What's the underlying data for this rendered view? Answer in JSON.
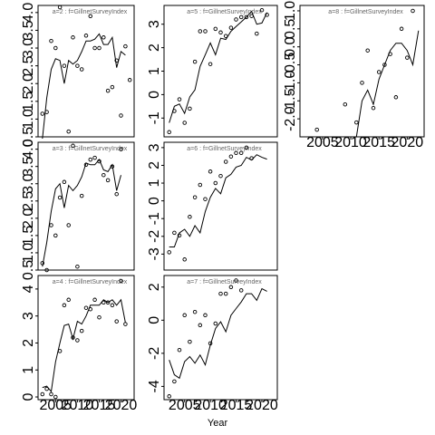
{
  "chart_data": {
    "type": "scatter",
    "layout": "3x3 panel grid (column-major)",
    "xlabel": "Year",
    "x_ticks": [
      2005,
      2010,
      2015,
      2020
    ],
    "xlim": [
      2001,
      2023
    ],
    "panels": [
      {
        "label": "a=2 : f=GillnetSurveyIndex",
        "ylim": [
          0.5,
          4.2
        ],
        "yticks": [
          0.5,
          1.0,
          1.5,
          2.0,
          2.5,
          3.0,
          3.5,
          4.0
        ],
        "ytick_labels": [
          "0.5",
          "1.0",
          "1.5",
          "2.0",
          "2.5",
          "3.0",
          "3.5",
          "4.0"
        ],
        "observed": [
          [
            2002,
            1.15
          ],
          [
            2003,
            1.2
          ],
          [
            2004,
            3.2
          ],
          [
            2005,
            3.0
          ],
          [
            2006,
            4.15
          ],
          [
            2007,
            2.5
          ],
          [
            2008,
            0.65
          ],
          [
            2009,
            3.3
          ],
          [
            2010,
            2.5
          ],
          [
            2011,
            2.4
          ],
          [
            2012,
            3.35
          ],
          [
            2013,
            3.9
          ],
          [
            2014,
            3.0
          ],
          [
            2015,
            3.0
          ],
          [
            2016,
            3.3
          ],
          [
            2017,
            1.8
          ],
          [
            2018,
            1.9
          ],
          [
            2019,
            2.65
          ],
          [
            2020,
            1.1
          ],
          [
            2021,
            3.05
          ],
          [
            2022,
            2.1
          ]
        ],
        "fitted": [
          [
            2002,
            0.45
          ],
          [
            2003,
            1.6
          ],
          [
            2004,
            2.4
          ],
          [
            2005,
            2.7
          ],
          [
            2006,
            2.65
          ],
          [
            2007,
            2.0
          ],
          [
            2008,
            2.65
          ],
          [
            2009,
            2.55
          ],
          [
            2010,
            2.65
          ],
          [
            2011,
            2.9
          ],
          [
            2012,
            3.2
          ],
          [
            2013,
            3.2
          ],
          [
            2014,
            3.25
          ],
          [
            2015,
            3.4
          ],
          [
            2016,
            3.1
          ],
          [
            2017,
            3.1
          ],
          [
            2018,
            3.3
          ],
          [
            2019,
            2.45
          ],
          [
            2020,
            2.9
          ],
          [
            2021,
            2.8
          ]
        ]
      },
      {
        "label": "a=3 : f=GillnetSurveyIndex",
        "ylim": [
          0.5,
          4.2
        ],
        "yticks": [
          0.5,
          1.0,
          1.5,
          2.0,
          2.5,
          3.0,
          3.5,
          4.0
        ],
        "ytick_labels": [
          "0.5",
          "1.0",
          "1.5",
          "2.0",
          "2.5",
          "3.0",
          "3.5",
          "4.0"
        ],
        "observed": [
          [
            2002,
            0.7
          ],
          [
            2003,
            0.5
          ],
          [
            2004,
            1.8
          ],
          [
            2005,
            1.5
          ],
          [
            2006,
            2.6
          ],
          [
            2007,
            3.05
          ],
          [
            2008,
            1.8
          ],
          [
            2009,
            4.1
          ],
          [
            2010,
            0.6
          ],
          [
            2011,
            2.65
          ],
          [
            2012,
            3.55
          ],
          [
            2013,
            3.7
          ],
          [
            2014,
            3.75
          ],
          [
            2015,
            3.65
          ],
          [
            2016,
            3.25
          ],
          [
            2017,
            3.1
          ],
          [
            2018,
            3.5
          ],
          [
            2019,
            2.7
          ],
          [
            2020,
            4.0
          ]
        ],
        "fitted": [
          [
            2002,
            0.6
          ],
          [
            2003,
            1.3
          ],
          [
            2004,
            2.2
          ],
          [
            2005,
            2.85
          ],
          [
            2006,
            3.0
          ],
          [
            2007,
            2.3
          ],
          [
            2008,
            2.95
          ],
          [
            2009,
            2.8
          ],
          [
            2010,
            2.95
          ],
          [
            2011,
            3.2
          ],
          [
            2012,
            3.6
          ],
          [
            2013,
            3.55
          ],
          [
            2014,
            3.55
          ],
          [
            2015,
            3.7
          ],
          [
            2016,
            3.4
          ],
          [
            2017,
            3.35
          ],
          [
            2018,
            3.55
          ],
          [
            2019,
            2.8
          ],
          [
            2020,
            3.25
          ]
        ]
      },
      {
        "label": "a=4 : f=GillnetSurveyIndex",
        "ylim": [
          -0.1,
          4.5
        ],
        "yticks": [
          0,
          1,
          2,
          3,
          4
        ],
        "ytick_labels": [
          "0",
          "1",
          "2",
          "3",
          "4"
        ],
        "observed": [
          [
            2002,
            0.1
          ],
          [
            2003,
            0.3
          ],
          [
            2004,
            0.1
          ],
          [
            2005,
            0.0
          ],
          [
            2006,
            1.7
          ],
          [
            2007,
            3.4
          ],
          [
            2008,
            3.6
          ],
          [
            2009,
            2.2
          ],
          [
            2010,
            2.1
          ],
          [
            2011,
            2.45
          ],
          [
            2012,
            3.3
          ],
          [
            2013,
            3.25
          ],
          [
            2014,
            3.6
          ],
          [
            2015,
            2.95
          ],
          [
            2016,
            3.5
          ],
          [
            2017,
            3.5
          ],
          [
            2018,
            3.4
          ],
          [
            2019,
            2.8
          ],
          [
            2020,
            4.3
          ],
          [
            2021,
            2.7
          ]
        ],
        "fitted": [
          [
            2002,
            0.35
          ],
          [
            2003,
            0.4
          ],
          [
            2004,
            0.2
          ],
          [
            2005,
            1.3
          ],
          [
            2006,
            2.0
          ],
          [
            2007,
            2.65
          ],
          [
            2008,
            2.7
          ],
          [
            2009,
            2.15
          ],
          [
            2010,
            2.8
          ],
          [
            2011,
            2.7
          ],
          [
            2012,
            3.0
          ],
          [
            2013,
            3.4
          ],
          [
            2014,
            3.4
          ],
          [
            2015,
            3.4
          ],
          [
            2016,
            3.6
          ],
          [
            2017,
            3.5
          ],
          [
            2018,
            3.6
          ],
          [
            2019,
            3.4
          ],
          [
            2020,
            3.6
          ],
          [
            2021,
            2.75
          ]
        ]
      },
      {
        "label": "a=5 : f=GillnetSurveyIndex",
        "ylim": [
          -1.8,
          3.8
        ],
        "yticks": [
          -1,
          0,
          1,
          2,
          3
        ],
        "ytick_labels": [
          "-1",
          "0",
          "1",
          "2",
          "3"
        ],
        "observed": [
          [
            2002,
            -1.6
          ],
          [
            2003,
            -0.7
          ],
          [
            2004,
            -0.2
          ],
          [
            2005,
            -1.2
          ],
          [
            2006,
            -0.6
          ],
          [
            2007,
            1.4
          ],
          [
            2008,
            2.7
          ],
          [
            2009,
            2.7
          ],
          [
            2010,
            1.3
          ],
          [
            2011,
            2.8
          ],
          [
            2012,
            2.65
          ],
          [
            2013,
            2.5
          ],
          [
            2014,
            2.85
          ],
          [
            2015,
            3.2
          ],
          [
            2016,
            3.3
          ],
          [
            2017,
            3.3
          ],
          [
            2018,
            3.35
          ],
          [
            2019,
            2.6
          ],
          [
            2020,
            3.6
          ],
          [
            2021,
            3.4
          ]
        ],
        "fitted": [
          [
            2002,
            -1.2
          ],
          [
            2003,
            -0.5
          ],
          [
            2004,
            -0.4
          ],
          [
            2005,
            -0.8
          ],
          [
            2006,
            -0.1
          ],
          [
            2007,
            0.2
          ],
          [
            2008,
            1.2
          ],
          [
            2009,
            1.7
          ],
          [
            2010,
            2.2
          ],
          [
            2011,
            1.7
          ],
          [
            2012,
            2.4
          ],
          [
            2013,
            2.35
          ],
          [
            2014,
            2.7
          ],
          [
            2015,
            2.9
          ],
          [
            2016,
            3.1
          ],
          [
            2017,
            3.3
          ],
          [
            2018,
            3.55
          ],
          [
            2019,
            3.0
          ],
          [
            2020,
            3.05
          ],
          [
            2021,
            3.5
          ]
        ]
      },
      {
        "label": "a=6 : f=GillnetSurveyIndex",
        "ylim": [
          -3.9,
          3.3
        ],
        "yticks": [
          -3,
          -2,
          -1,
          0,
          1,
          2,
          3
        ],
        "ytick_labels": [
          "-3",
          "-2",
          "-1",
          "0",
          "1",
          "2",
          "3"
        ],
        "observed": [
          [
            2002,
            -2.9
          ],
          [
            2003,
            -1.8
          ],
          [
            2004,
            -1.95
          ],
          [
            2005,
            -3.3
          ],
          [
            2006,
            -0.9
          ],
          [
            2007,
            0.2
          ],
          [
            2008,
            0.9
          ],
          [
            2009,
            0.1
          ],
          [
            2010,
            1.65
          ],
          [
            2011,
            1.0
          ],
          [
            2012,
            1.4
          ],
          [
            2013,
            2.2
          ],
          [
            2014,
            2.5
          ],
          [
            2015,
            2.7
          ],
          [
            2016,
            2.7
          ],
          [
            2017,
            3.0
          ],
          [
            2018,
            2.4
          ]
        ],
        "fitted": [
          [
            2002,
            -2.6
          ],
          [
            2003,
            -2.6
          ],
          [
            2004,
            -1.8
          ],
          [
            2005,
            -1.6
          ],
          [
            2006,
            -2.0
          ],
          [
            2007,
            -1.4
          ],
          [
            2008,
            -1.8
          ],
          [
            2009,
            -0.6
          ],
          [
            2010,
            0.2
          ],
          [
            2011,
            0.7
          ],
          [
            2012,
            0.4
          ],
          [
            2013,
            1.3
          ],
          [
            2014,
            1.5
          ],
          [
            2015,
            1.9
          ],
          [
            2016,
            2.0
          ],
          [
            2017,
            2.45
          ],
          [
            2018,
            2.3
          ],
          [
            2019,
            2.6
          ],
          [
            2020,
            2.45
          ],
          [
            2021,
            2.35
          ]
        ]
      },
      {
        "label": "a=7 : f=GillnetSurveyIndex",
        "ylim": [
          -4.8,
          2.7
        ],
        "yticks": [
          -4,
          -2,
          0,
          2
        ],
        "ytick_labels": [
          "-4",
          "-2",
          "0",
          "2"
        ],
        "observed": [
          [
            2002,
            -4.6
          ],
          [
            2003,
            -3.7
          ],
          [
            2004,
            -1.8
          ],
          [
            2005,
            0.3
          ],
          [
            2006,
            -1.3
          ],
          [
            2007,
            0.5
          ],
          [
            2008,
            -0.3
          ],
          [
            2009,
            0.3
          ],
          [
            2010,
            -1.4
          ],
          [
            2011,
            -0.2
          ],
          [
            2012,
            1.6
          ],
          [
            2013,
            1.6
          ],
          [
            2014,
            2.0
          ],
          [
            2015,
            2.4
          ],
          [
            2016,
            1.8
          ]
        ],
        "fitted": [
          [
            2002,
            -2.4
          ],
          [
            2003,
            -3.3
          ],
          [
            2004,
            -3.5
          ],
          [
            2005,
            -2.5
          ],
          [
            2006,
            -2.2
          ],
          [
            2007,
            -2.6
          ],
          [
            2008,
            -2.1
          ],
          [
            2009,
            -2.7
          ],
          [
            2010,
            -1.5
          ],
          [
            2011,
            -0.5
          ],
          [
            2012,
            -0.1
          ],
          [
            2013,
            -0.7
          ],
          [
            2014,
            0.3
          ],
          [
            2015,
            0.7
          ],
          [
            2016,
            1.1
          ],
          [
            2017,
            1.6
          ],
          [
            2018,
            1.6
          ],
          [
            2019,
            1.2
          ],
          [
            2020,
            1.9
          ],
          [
            2021,
            1.75
          ]
        ]
      },
      {
        "label": "a=8 : f=GillnetSurveyIndex",
        "ylim": [
          -2.5,
          1.15
        ],
        "yticks": [
          -2.0,
          -1.5,
          -1.0,
          -0.5,
          0.0,
          0.5,
          1.0
        ],
        "ytick_labels": [
          "-2.0",
          "-1.5",
          "-1.0",
          "-0.5",
          "0.0",
          "0.5",
          "1.0"
        ],
        "observed": [
          [
            2004,
            -2.3
          ],
          [
            2009,
            -1.6
          ],
          [
            2011,
            -2.1
          ],
          [
            2012,
            -1.0
          ],
          [
            2013,
            -0.1
          ],
          [
            2014,
            -1.7
          ],
          [
            2015,
            -0.7
          ],
          [
            2016,
            -0.5
          ],
          [
            2017,
            -0.2
          ],
          [
            2018,
            -1.4
          ],
          [
            2019,
            0.5
          ],
          [
            2020,
            -0.3
          ],
          [
            2021,
            1.0
          ]
        ],
        "fitted": [
          [
            2011,
            -2.5
          ],
          [
            2012,
            -1.5
          ],
          [
            2013,
            -1.2
          ],
          [
            2014,
            -1.6
          ],
          [
            2015,
            -0.9
          ],
          [
            2016,
            -0.5
          ],
          [
            2017,
            -0.1
          ],
          [
            2018,
            0.1
          ],
          [
            2019,
            0.1
          ],
          [
            2020,
            -0.1
          ],
          [
            2021,
            -0.5
          ],
          [
            2022,
            0.45
          ]
        ]
      }
    ]
  }
}
